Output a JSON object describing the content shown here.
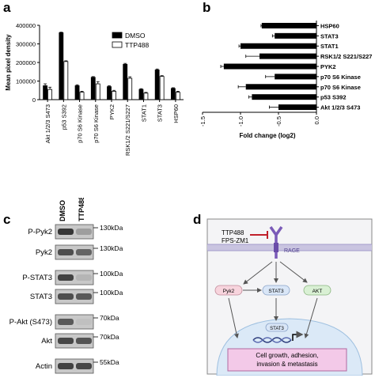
{
  "panels": {
    "a": "a",
    "b": "b",
    "c": "c",
    "d": "d"
  },
  "chart_data": [
    {
      "type": "bar",
      "panel": "a",
      "ylabel": "Mean pixel density",
      "xlabel": "",
      "ylim": [
        0,
        400000
      ],
      "yticks": [
        0,
        100000,
        200000,
        300000,
        400000
      ],
      "ytick_labels": [
        "0",
        "100000",
        "200000",
        "300000",
        "400000"
      ],
      "categories": [
        "Akt 1/2/3 S473",
        "p53 S392",
        "p70 S6 Kinase",
        "p70 S6 Kinase",
        "PYK2",
        "RSK1/2 S221/S227",
        "STAT1",
        "STAT3",
        "HSP60"
      ],
      "series": [
        {
          "name": "DMSO",
          "color": "#000000",
          "values": [
            75000,
            360000,
            75000,
            120000,
            70000,
            190000,
            55000,
            160000,
            60000
          ],
          "errors": [
            10000,
            3000,
            5000,
            4000,
            5000,
            5000,
            4000,
            5000,
            4000
          ]
        },
        {
          "name": "TTP488",
          "color": "#ffffff",
          "values": [
            55000,
            205000,
            40000,
            85000,
            45000,
            115000,
            35000,
            125000,
            40000
          ],
          "errors": [
            12000,
            4000,
            5000,
            12000,
            5000,
            8000,
            4000,
            4000,
            5000
          ]
        }
      ],
      "legend": "top-right"
    },
    {
      "type": "bar",
      "panel": "b",
      "orientation": "horizontal",
      "xlabel": "Fold change (log2)",
      "xlim": [
        -1.5,
        0
      ],
      "xticks": [
        -1.5,
        -1.0,
        -0.5,
        0.0
      ],
      "xtick_labels": [
        "-1.5",
        "-1.0",
        "-0.5",
        "0.0"
      ],
      "categories": [
        "HSP60",
        "STAT3",
        "STAT1",
        "RSK1/2 S221/S227",
        "PYK2",
        "p70 S6 Kinase",
        "p70 S6 Kinase",
        "p53 S392",
        "Akt 1/2/3 S473"
      ],
      "values": [
        -0.72,
        -0.55,
        -1.0,
        -0.75,
        -1.22,
        -0.55,
        -0.93,
        -0.85,
        -0.5
      ],
      "errors": [
        0.01,
        0.03,
        0.02,
        0.18,
        0.04,
        0.12,
        0.1,
        0.04,
        0.12
      ]
    }
  ],
  "blot": {
    "lanes": [
      "DMSO",
      "TTP488"
    ],
    "rows": [
      {
        "label": "P-Pyk2",
        "kda": "130kDa"
      },
      {
        "label": "Pyk2",
        "kda": "130kDa"
      },
      {
        "label": "P-STAT3",
        "kda": "100kDa"
      },
      {
        "label": "STAT3",
        "kda": "100kDa"
      },
      {
        "label": "P-Akt (S473)",
        "kda": "70kDa"
      },
      {
        "label": "Akt",
        "kda": "70kDa"
      },
      {
        "label": "Actin",
        "kda": "55kDa"
      }
    ]
  },
  "diagram": {
    "inhibitor1": "TTP488",
    "inhibitor2": "FPS-ZM1",
    "receptor": "RAGE",
    "node_pyk2": "Pyk2",
    "node_stat3": "STAT3",
    "node_akt": "AKT",
    "node_nuclear_stat3": "STAT3",
    "outcome_line1": "Cell growth, adhesion,",
    "outcome_line2": "invasion  & metastasis"
  }
}
